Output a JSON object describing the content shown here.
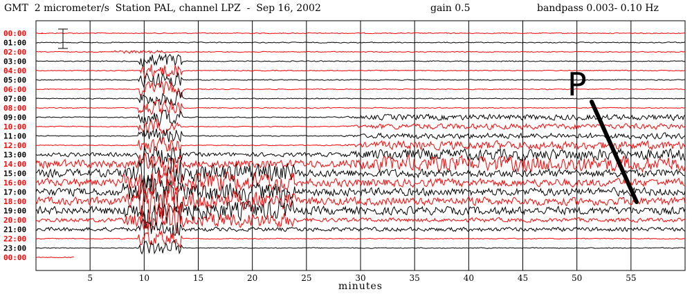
{
  "header": {
    "title": "GMT  2 micrometer/s  Station PAL, channel LPZ  -  Sep 16, 2002",
    "gain": "gain 0.5",
    "bandpass": "bandpass 0.003- 0.10 Hz"
  },
  "chart_data": {
    "type": "line",
    "title": "GMT  2 micrometer/s  Station PAL, channel LPZ  -  Sep 16, 2002",
    "xlabel": "minutes",
    "ylabel": "",
    "xlim": [
      0,
      60
    ],
    "x_ticks": [
      "5",
      "10",
      "15",
      "20",
      "25",
      "30",
      "35",
      "40",
      "45",
      "50",
      "55"
    ],
    "row_labels": [
      "00:00",
      "01:00",
      "02:00",
      "03:00",
      "04:00",
      "05:00",
      "06:00",
      "07:00",
      "08:00",
      "09:00",
      "10:00",
      "11:00",
      "12:00",
      "13:00",
      "14:00",
      "15:00",
      "16:00",
      "17:00",
      "18:00",
      "19:00",
      "20:00",
      "21:00",
      "22:00",
      "23:00",
      "00:00"
    ],
    "trace_colors": [
      "#ff0000",
      "#000000"
    ],
    "grid": true,
    "annotation": "P",
    "scale_bar_label": "-"
  }
}
